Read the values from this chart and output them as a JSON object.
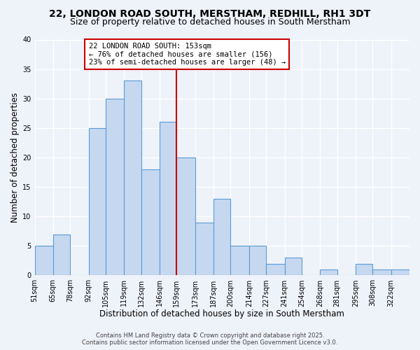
{
  "title": "22, LONDON ROAD SOUTH, MERSTHAM, REDHILL, RH1 3DT",
  "subtitle": "Size of property relative to detached houses in South Merstham",
  "xlabel": "Distribution of detached houses by size in South Merstham",
  "ylabel": "Number of detached properties",
  "bar_color": "#c5d8f0",
  "bar_edge_color": "#5b9bd5",
  "bar_edge_width": 0.8,
  "bin_edges": [
    51,
    65,
    78,
    92,
    105,
    119,
    132,
    146,
    159,
    173,
    187,
    200,
    214,
    227,
    241,
    254,
    268,
    281,
    295,
    308,
    322,
    336
  ],
  "bar_heights": [
    5,
    7,
    0,
    25,
    30,
    33,
    18,
    26,
    20,
    9,
    13,
    5,
    5,
    2,
    3,
    0,
    1,
    0,
    2,
    1,
    1
  ],
  "redline_x": 159,
  "ylim": [
    0,
    40
  ],
  "yticks": [
    0,
    5,
    10,
    15,
    20,
    25,
    30,
    35,
    40
  ],
  "x_tick_labels": [
    "51sqm",
    "65sqm",
    "78sqm",
    "92sqm",
    "105sqm",
    "119sqm",
    "132sqm",
    "146sqm",
    "159sqm",
    "173sqm",
    "187sqm",
    "200sqm",
    "214sqm",
    "227sqm",
    "241sqm",
    "254sqm",
    "268sqm",
    "281sqm",
    "295sqm",
    "308sqm",
    "322sqm"
  ],
  "annotation_text": "22 LONDON ROAD SOUTH: 153sqm\n← 76% of detached houses are smaller (156)\n23% of semi-detached houses are larger (48) →",
  "annotation_box_color": "#ffffff",
  "annotation_border_color": "#cc0000",
  "footer_line1": "Contains HM Land Registry data © Crown copyright and database right 2025.",
  "footer_line2": "Contains public sector information licensed under the Open Government Licence v3.0.",
  "background_color": "#eef2f9",
  "grid_color": "#ffffff",
  "title_fontsize": 10,
  "subtitle_fontsize": 9,
  "axis_label_fontsize": 8.5,
  "tick_fontsize": 7,
  "annotation_fontsize": 7.5,
  "footer_fontsize": 6
}
